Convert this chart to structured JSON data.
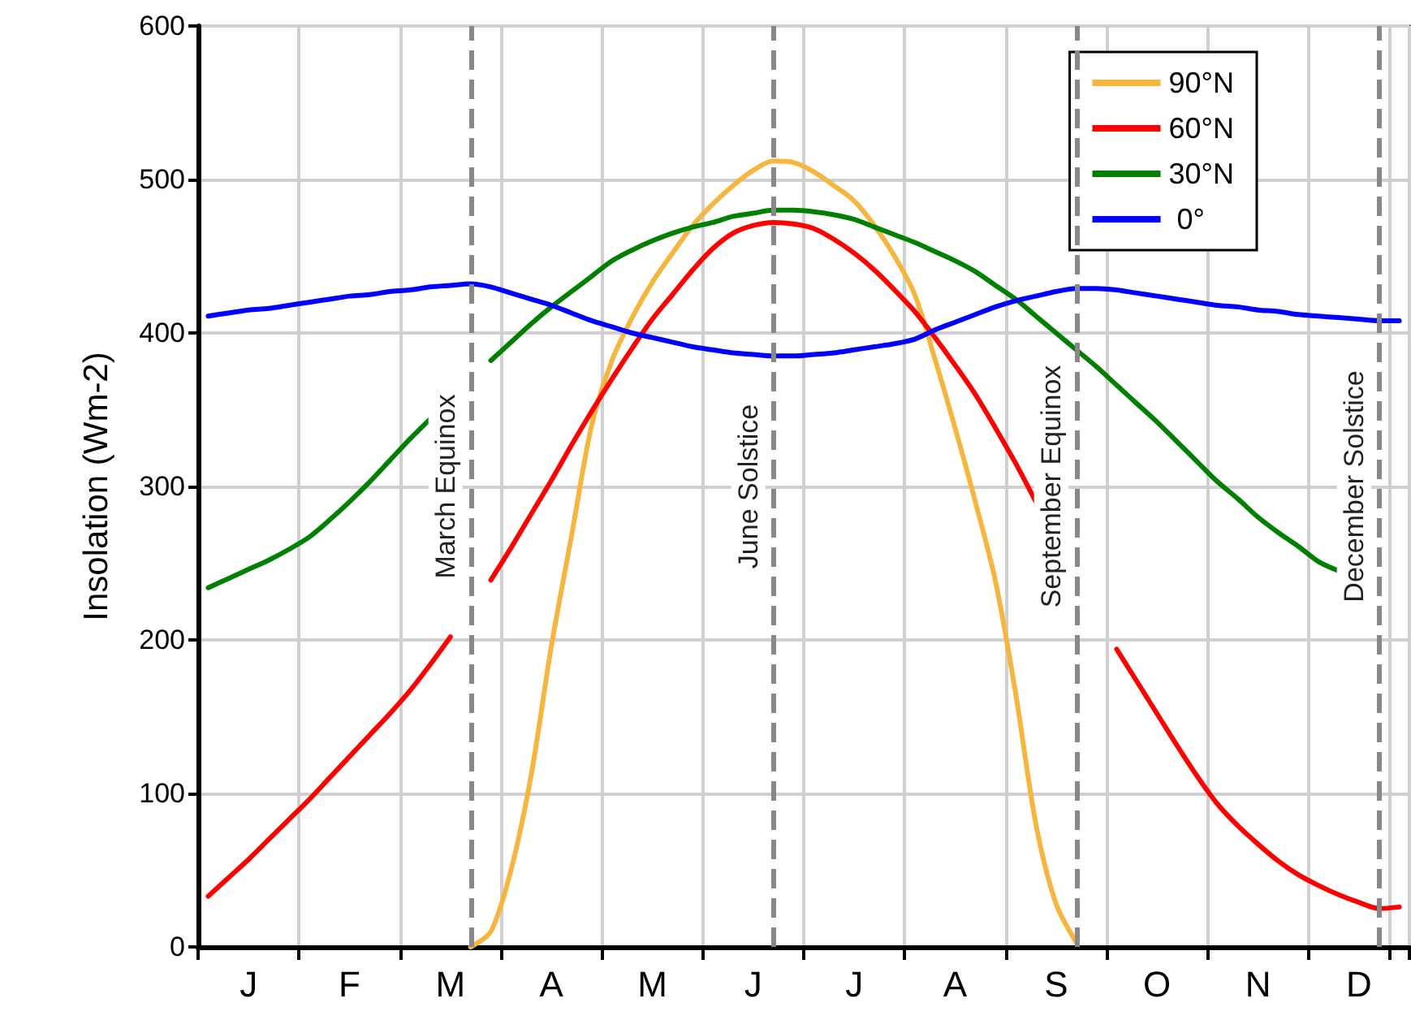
{
  "chart_data": {
    "type": "line",
    "ylabel": "Insolation (Wm-2)",
    "categories": [
      null,
      null,
      "J",
      null,
      null,
      null,
      null,
      "F",
      null,
      null,
      null,
      null,
      "M",
      null,
      null,
      null,
      null,
      "A",
      null,
      null,
      null,
      null,
      "M",
      null,
      null,
      null,
      null,
      "J",
      null,
      null,
      null,
      null,
      "J",
      null,
      null,
      null,
      null,
      "A",
      null,
      null,
      null,
      null,
      "S",
      null,
      null,
      null,
      null,
      "O",
      null,
      null,
      null,
      null,
      "N",
      null,
      null,
      null,
      null,
      "D",
      null,
      null
    ],
    "ylim": [
      0,
      600
    ],
    "yticks": [
      0,
      100,
      200,
      300,
      400,
      500,
      600
    ],
    "grid": true,
    "legend": "top right",
    "marker": "none",
    "line_style": "solid",
    "series": [
      {
        "name": "90°N",
        "color": "#f4b63f",
        "values": [
          null,
          null,
          null,
          null,
          null,
          null,
          null,
          null,
          null,
          null,
          null,
          null,
          null,
          0,
          10,
          50,
          112,
          196,
          268,
          340,
          382,
          410,
          433,
          452,
          470,
          484,
          496,
          506,
          512,
          511,
          505,
          496,
          486,
          470,
          450,
          425,
          383,
          338,
          290,
          238,
          165,
          80,
          28,
          3,
          null,
          null,
          null,
          null,
          null,
          null,
          null,
          null,
          null,
          null,
          null,
          null,
          null,
          null,
          null,
          null
        ]
      },
      {
        "name": "60°N",
        "color": "#ff0000",
        "values": [
          33,
          45,
          57,
          70,
          83,
          96,
          110,
          124,
          138,
          152,
          167,
          184,
          202,
          null,
          239,
          260,
          282,
          304,
          327,
          349,
          370,
          390,
          409,
          425,
          441,
          455,
          465,
          470,
          472,
          471,
          468,
          461,
          452,
          441,
          428,
          414,
          397,
          379,
          360,
          338,
          315,
          290,
          null,
          null,
          null,
          194,
          173,
          152,
          131,
          111,
          93,
          79,
          67,
          56,
          47,
          40,
          34,
          29,
          25,
          26
        ]
      },
      {
        "name": "30°N",
        "color": "#008000",
        "values": [
          234,
          240,
          246,
          252,
          259,
          267,
          278,
          290,
          303,
          317,
          331,
          344,
          null,
          null,
          382,
          394,
          406,
          417,
          427,
          437,
          447,
          454,
          460,
          465,
          469,
          472,
          476,
          478,
          480,
          480,
          479,
          477,
          474,
          469,
          464,
          459,
          453,
          447,
          440,
          431,
          422,
          411,
          400,
          389,
          378,
          366,
          354,
          342,
          329,
          316,
          303,
          292,
          280,
          270,
          261,
          251,
          245,
          null,
          null,
          null
        ]
      },
      {
        "name": " 0°",
        "color": "#0000ff",
        "values": [
          411,
          413,
          415,
          416,
          418,
          420,
          422,
          424,
          425,
          427,
          428,
          430,
          431,
          432,
          430,
          426,
          422,
          418,
          413,
          408,
          404,
          400,
          397,
          394,
          391,
          389,
          387,
          386,
          385,
          385,
          386,
          387,
          389,
          391,
          393,
          396,
          402,
          407,
          412,
          417,
          421,
          424,
          427,
          429,
          429,
          428,
          426,
          424,
          422,
          420,
          418,
          417,
          415,
          414,
          412,
          411,
          410,
          409,
          408,
          408
        ]
      }
    ],
    "annotations": [
      "March Equinox",
      "June Solstice",
      "September Equinox",
      "December Solstice"
    ]
  }
}
